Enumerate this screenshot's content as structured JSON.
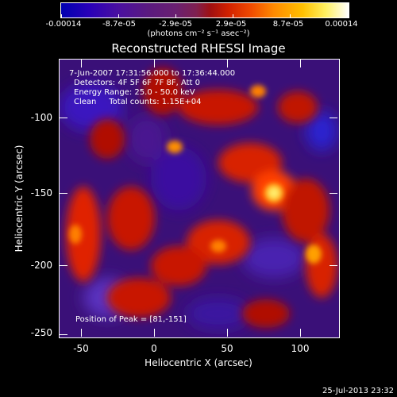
{
  "colorbar": {
    "tick_labels": [
      "-0.00014",
      "-8.7e-05",
      "-2.9e-05",
      "2.9e-05",
      "8.7e-05",
      "0.00014"
    ],
    "units": "(photons cm⁻² s⁻¹ asec⁻²)"
  },
  "title": "Reconstructed RHESSI Image",
  "annotations": {
    "time_range": "7-Jun-2007 17:31:56.000 to 17:36:44.000",
    "detectors": "Detectors: 4F 5F 6F 7F 8F, Att 0",
    "energy": "Energy Range: 25.0 - 50.0 keV",
    "clean": "Clean     Total counts: 1.15E+04",
    "peak": "Position of Peak = [81,-151]"
  },
  "axes": {
    "xlabel": "Heliocentric X (arcsec)",
    "ylabel": "Heliocentric Y (arcsec)",
    "x_ticks": [
      "-50",
      "0",
      "50",
      "100"
    ],
    "y_ticks": [
      "-100",
      "-150",
      "-200",
      "-250"
    ],
    "xlim": [
      -65,
      126
    ],
    "ylim": [
      -252,
      -74
    ]
  },
  "footer": {
    "datestamp": "25-Jul-2013 23:32"
  },
  "colors": {
    "background": "#000000",
    "cold": "#3a1080",
    "hot": "#ff3000",
    "peak": "#ffe060"
  }
}
